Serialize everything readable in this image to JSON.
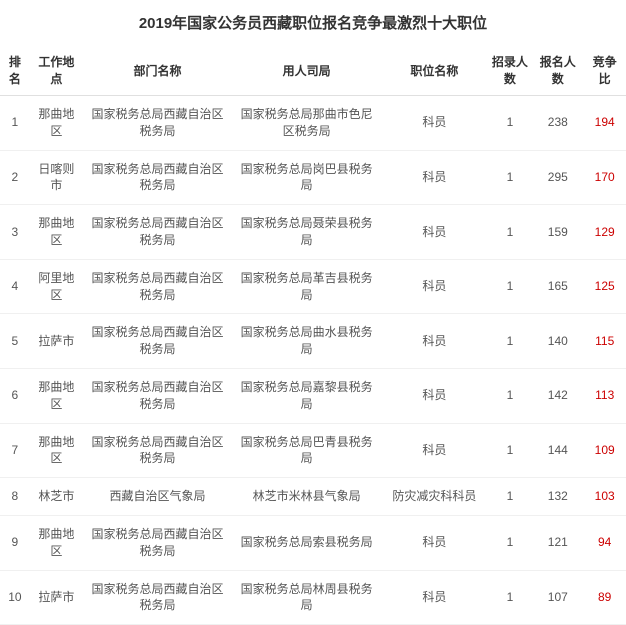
{
  "title": "2019年国家公务员西藏职位报名竞争最激烈十大职位",
  "columns": {
    "rank": "排名",
    "location": "工作地点",
    "department": "部门名称",
    "bureau": "用人司局",
    "position": "职位名称",
    "hire_count": "招录人数",
    "apply_count": "报名人数",
    "ratio": "竞争比"
  },
  "rows": [
    {
      "rank": "1",
      "location": "那曲地区",
      "department": "国家税务总局西藏自治区税务局",
      "bureau": "国家税务总局那曲市色尼区税务局",
      "position": "科员",
      "hire_count": "1",
      "apply_count": "238",
      "ratio": "194"
    },
    {
      "rank": "2",
      "location": "日喀则市",
      "department": "国家税务总局西藏自治区税务局",
      "bureau": "国家税务总局岗巴县税务局",
      "position": "科员",
      "hire_count": "1",
      "apply_count": "295",
      "ratio": "170"
    },
    {
      "rank": "3",
      "location": "那曲地区",
      "department": "国家税务总局西藏自治区税务局",
      "bureau": "国家税务总局聂荣县税务局",
      "position": "科员",
      "hire_count": "1",
      "apply_count": "159",
      "ratio": "129"
    },
    {
      "rank": "4",
      "location": "阿里地区",
      "department": "国家税务总局西藏自治区税务局",
      "bureau": "国家税务总局革吉县税务局",
      "position": "科员",
      "hire_count": "1",
      "apply_count": "165",
      "ratio": "125"
    },
    {
      "rank": "5",
      "location": "拉萨市",
      "department": "国家税务总局西藏自治区税务局",
      "bureau": "国家税务总局曲水县税务局",
      "position": "科员",
      "hire_count": "1",
      "apply_count": "140",
      "ratio": "115"
    },
    {
      "rank": "6",
      "location": "那曲地区",
      "department": "国家税务总局西藏自治区税务局",
      "bureau": "国家税务总局嘉黎县税务局",
      "position": "科员",
      "hire_count": "1",
      "apply_count": "142",
      "ratio": "113"
    },
    {
      "rank": "7",
      "location": "那曲地区",
      "department": "国家税务总局西藏自治区税务局",
      "bureau": "国家税务总局巴青县税务局",
      "position": "科员",
      "hire_count": "1",
      "apply_count": "144",
      "ratio": "109"
    },
    {
      "rank": "8",
      "location": "林芝市",
      "department": "西藏自治区气象局",
      "bureau": "林芝市米林县气象局",
      "position": "防灾减灾科科员",
      "hire_count": "1",
      "apply_count": "132",
      "ratio": "103"
    },
    {
      "rank": "9",
      "location": "那曲地区",
      "department": "国家税务总局西藏自治区税务局",
      "bureau": "国家税务总局索县税务局",
      "position": "科员",
      "hire_count": "1",
      "apply_count": "121",
      "ratio": "94"
    },
    {
      "rank": "10",
      "location": "拉萨市",
      "department": "国家税务总局西藏自治区税务局",
      "bureau": "国家税务总局林周县税务局",
      "position": "科员",
      "hire_count": "1",
      "apply_count": "107",
      "ratio": "89"
    }
  ],
  "styling": {
    "title_fontsize": 15,
    "table_fontsize": 12,
    "ratio_color": "#cc0000",
    "text_color": "#555555",
    "header_color": "#333333",
    "border_color": "#e0e0e0",
    "row_border_color": "#f0f0f0",
    "background_color": "#ffffff"
  }
}
